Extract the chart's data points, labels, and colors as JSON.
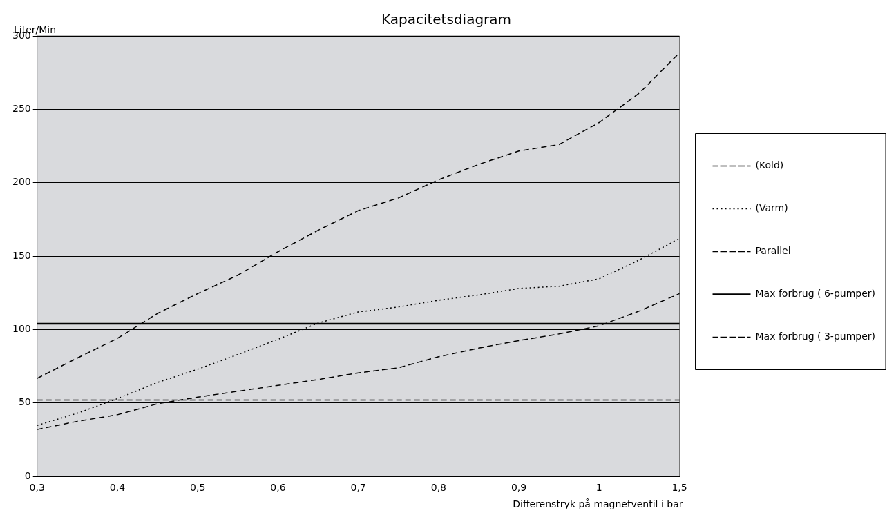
{
  "chart_data": {
    "type": "line",
    "title": "Kapacitetsdiagram",
    "ylabel": "Liter/Min",
    "xlabel": "Differenstryk på magnetventil i bar",
    "categories": [
      "0,3",
      null,
      "0,4",
      null,
      "0,5",
      null,
      "0,6",
      null,
      "0,7",
      null,
      "0,8",
      null,
      "0,9",
      null,
      "1",
      null,
      "1,5"
    ],
    "series": [
      {
        "name": "(Kold)",
        "color": "#000000",
        "line_style": "dashed",
        "values": [
          32,
          37.5,
          42,
          49.5,
          54,
          58,
          62,
          66,
          70.5,
          74,
          81.5,
          87.4,
          92.5,
          97,
          102.6,
          112.6,
          124.5
        ]
      },
      {
        "name": "(Varm)",
        "color": "#000000",
        "line_style": "dotted",
        "values": [
          34.8,
          43,
          53,
          64,
          73,
          83,
          93.4,
          104.4,
          112,
          115.4,
          120,
          123.6,
          128,
          129.5,
          134.6,
          147.4,
          162
        ]
      },
      {
        "name": "Parallel",
        "color": "#000000",
        "line_style": "dashed",
        "values": [
          66.8,
          80.6,
          94,
          111,
          124.5,
          137,
          153,
          167.6,
          181,
          189.6,
          202,
          212.5,
          221.6,
          226,
          241,
          261,
          288.5
        ]
      },
      {
        "name": "Max forbrug ( 6-pumper)",
        "color": "#000000",
        "line_style": "solid",
        "values": [
          104,
          104,
          104,
          104,
          104,
          104,
          104,
          104,
          104,
          104,
          104,
          104,
          104,
          104,
          104,
          104,
          104
        ]
      },
      {
        "name": "Max forbrug ( 3-pumper)",
        "color": "#000000",
        "line_style": "dashed",
        "values": [
          52,
          52,
          52,
          52,
          52,
          52,
          52,
          52,
          52,
          52,
          52,
          52,
          52,
          52,
          52,
          52,
          52
        ]
      }
    ],
    "ylim": [
      0,
      300
    ],
    "yticks": [
      0,
      50,
      100,
      150,
      200,
      250,
      300
    ],
    "grid": "y",
    "legend": "right",
    "marker": "none"
  }
}
